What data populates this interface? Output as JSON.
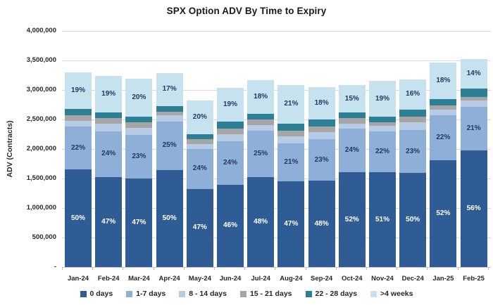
{
  "chart": {
    "title": "SPX Option ADV By Time to Expiry",
    "y_axis_title": "ADV (Contracts)"
  },
  "chart_data": {
    "type": "bar",
    "stacked": true,
    "title": "SPX Option ADV By Time to Expiry",
    "xlabel": "",
    "ylabel": "ADV (Contracts)",
    "ylim": [
      0,
      4000000
    ],
    "ytick_interval": 500000,
    "ytick_labels_bottom_to_top": [
      "-",
      "500,000",
      "1,000,000",
      "1,500,000",
      "2,000,000",
      "2,500,000",
      "3,000,000",
      "3,500,000",
      "4,000,000"
    ],
    "grid": true,
    "legend_position": "bottom",
    "categories": [
      "Jan-24",
      "Feb-24",
      "Mar-24",
      "Apr-24",
      "May-24",
      "Jun-24",
      "Jul-24",
      "Aug-24",
      "Sep-24",
      "Oct-24",
      "Nov-24",
      "Dec-24",
      "Jan-25",
      "Feb-25"
    ],
    "totals_contracts": [
      3300000,
      3240000,
      3190000,
      3290000,
      2820000,
      3040000,
      3170000,
      3080000,
      3050000,
      3080000,
      3150000,
      3180000,
      3470000,
      3520000
    ],
    "series": [
      {
        "name": "0 days",
        "color": "#2F5C94",
        "pct": [
          50,
          47,
          47,
          50,
          47,
          46,
          48,
          47,
          48,
          52,
          51,
          50,
          52,
          56
        ],
        "labeled": true,
        "label_text_color": "#FFFFFF"
      },
      {
        "name": "1-7 days",
        "color": "#8EAFD8",
        "pct": [
          22,
          24,
          23,
          25,
          24,
          24,
          25,
          21,
          23,
          24,
          22,
          23,
          22,
          21
        ],
        "labeled": true,
        "label_text_color": "#1F3864"
      },
      {
        "name": "8 - 14 days",
        "color": "#B7CBE4",
        "pct": [
          3,
          4,
          4,
          3,
          3,
          4,
          3,
          4,
          4,
          3,
          3,
          4,
          3,
          3
        ],
        "labeled": false
      },
      {
        "name": "15 - 21 days",
        "color": "#A6A6A6",
        "pct": [
          3,
          3,
          3,
          2,
          3,
          3,
          3,
          3,
          3,
          3,
          2,
          3,
          2,
          2
        ],
        "labeled": false
      },
      {
        "name": "22 - 28 days",
        "color": "#2D7F96",
        "pct": [
          3,
          3,
          3,
          3,
          3,
          4,
          3,
          4,
          4,
          3,
          3,
          4,
          3,
          4
        ],
        "labeled": false
      },
      {
        "name": ">4 weeks",
        "color": "#C7E2EF",
        "pct": [
          19,
          19,
          20,
          17,
          20,
          19,
          18,
          21,
          18,
          15,
          19,
          16,
          18,
          14
        ],
        "labeled": true,
        "label_text_color": "#1F3864"
      }
    ]
  }
}
